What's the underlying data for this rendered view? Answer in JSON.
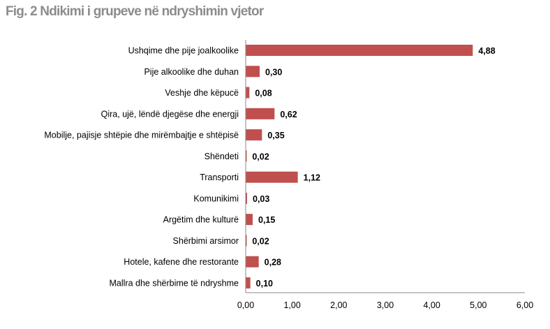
{
  "chart_data": {
    "type": "bar",
    "orientation": "horizontal",
    "title": "Fig. 2 Ndikimi i grupeve në ndryshimin vjetor",
    "categories": [
      "Ushqime dhe pije joalkoolike",
      "Pije alkoolike dhe duhan",
      "Veshje dhe këpucë",
      "Qira, ujë, lëndë djegëse dhe energji",
      "Mobilje, pajisje shtëpie dhe mirëmbajtje e shtëpisë",
      "Shëndeti",
      "Transporti",
      "Komunikimi",
      "Argëtim dhe kulturë",
      "Shërbimi arsimor",
      "Hotele, kafene dhe restorante",
      "Mallra dhe shërbime të ndryshme"
    ],
    "values": [
      4.88,
      0.3,
      0.08,
      0.62,
      0.35,
      0.02,
      1.12,
      0.03,
      0.15,
      0.02,
      0.28,
      0.1
    ],
    "value_labels": [
      "4,88",
      "0,30",
      "0,08",
      "0,62",
      "0,35",
      "0,02",
      "1,12",
      "0,03",
      "0,15",
      "0,02",
      "0,28",
      "0,10"
    ],
    "xlim": [
      0,
      6
    ],
    "xticks": [
      "0,00",
      "1,00",
      "2,00",
      "3,00",
      "4,00",
      "5,00",
      "6,00"
    ],
    "xlabel": "",
    "ylabel": "",
    "grid": false,
    "bar_color": "#c0504d"
  }
}
